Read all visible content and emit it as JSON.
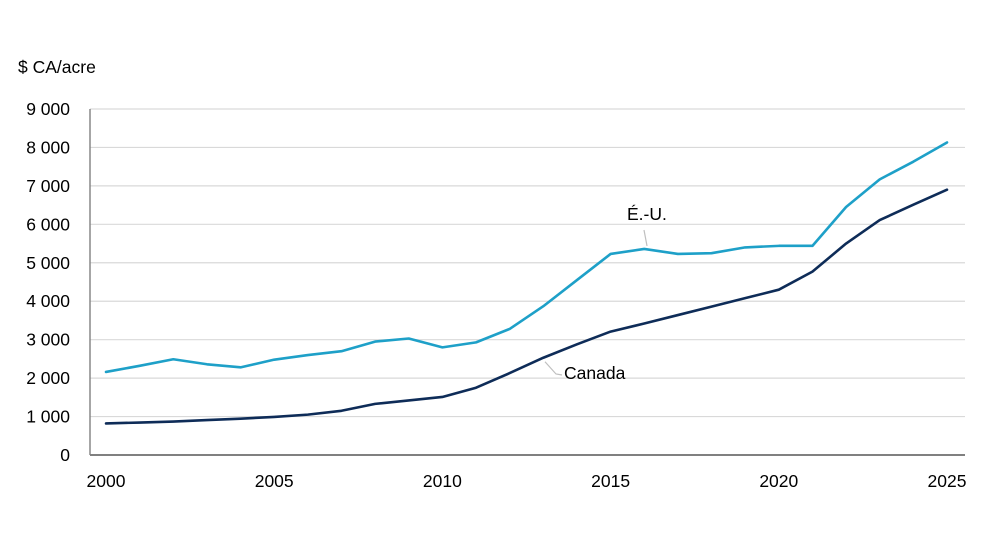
{
  "page": {
    "background": "#ffffff"
  },
  "chart": {
    "unit_label": "$ CA/acre",
    "y_axis": {
      "min": 0,
      "max": 9000,
      "step": 1000,
      "tick_labels": [
        "0",
        "1 000",
        "2 000",
        "3 000",
        "4 000",
        "5 000",
        "6 000",
        "7 000",
        "8 000",
        "9 000"
      ]
    },
    "x_axis": {
      "tick_labels": [
        "2000",
        "2005",
        "2010",
        "2015",
        "2020",
        "2025"
      ]
    },
    "colors": {
      "us_line": "#1EA0C8",
      "canada_line": "#0E2C58",
      "gridline": "#D9D9D9",
      "axis": "#808080",
      "leader": "#BFBFBF",
      "text": "#000000"
    }
  },
  "chart_data": {
    "type": "line",
    "title": "",
    "xlabel": "",
    "ylabel": "$ CA/acre",
    "ylim": [
      0,
      9000
    ],
    "xlim": [
      2000,
      2025
    ],
    "grid": true,
    "legend_position": "inline-labels",
    "x": [
      2000,
      2001,
      2002,
      2003,
      2004,
      2005,
      2006,
      2007,
      2008,
      2009,
      2010,
      2011,
      2012,
      2013,
      2014,
      2015,
      2016,
      2017,
      2018,
      2019,
      2020,
      2021,
      2022,
      2023,
      2024,
      2025
    ],
    "xticks": [
      2000,
      2005,
      2010,
      2015,
      2020,
      2025
    ],
    "series": [
      {
        "name": "É.-U.",
        "color": "#1EA0C8",
        "values": [
          2160,
          2320,
          2490,
          2360,
          2280,
          2480,
          2600,
          2700,
          2950,
          3030,
          2800,
          2930,
          3280,
          3870,
          4550,
          5230,
          5360,
          5230,
          5250,
          5400,
          5440,
          5440,
          6450,
          7170,
          7630,
          8130
        ]
      },
      {
        "name": "Canada",
        "color": "#0E2C58",
        "values": [
          820,
          845,
          870,
          910,
          945,
          990,
          1050,
          1150,
          1330,
          1420,
          1510,
          1750,
          2130,
          2530,
          2880,
          3210,
          3420,
          3640,
          3860,
          4080,
          4300,
          4770,
          5500,
          6110,
          6510,
          6900
        ]
      }
    ],
    "annotations": [
      {
        "text": "É.-U.",
        "anchor_year": 2016,
        "series": "É.-U."
      },
      {
        "text": "Canada",
        "anchor_year": 2013,
        "series": "Canada"
      }
    ]
  }
}
